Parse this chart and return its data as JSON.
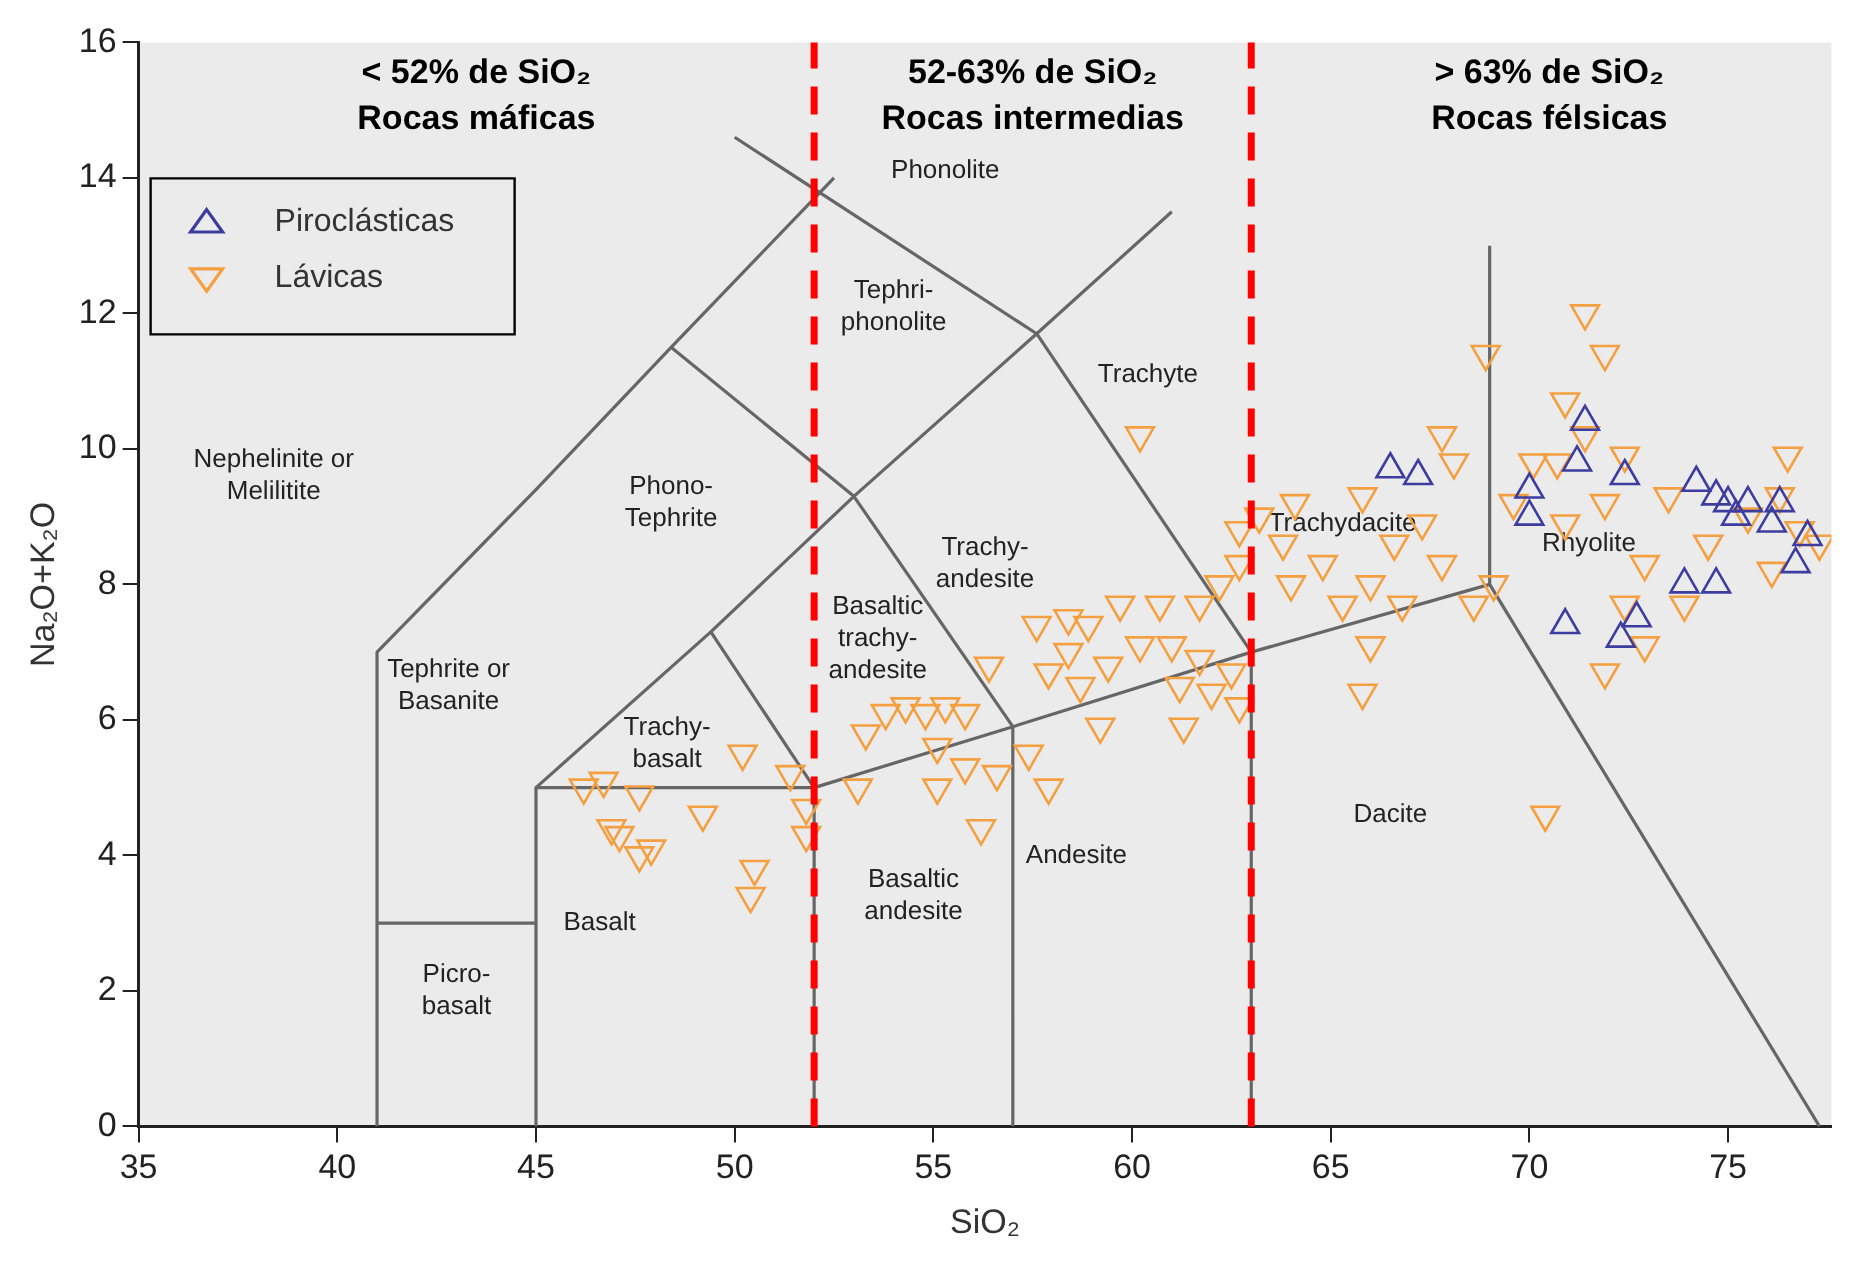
{
  "chart_data": {
    "type": "scatter",
    "xlabel": "SiO₂",
    "ylabel": "Na₂O+K₂O",
    "xlim": [
      35,
      77.6
    ],
    "ylim": [
      0,
      16
    ],
    "xticks": [
      35,
      40,
      45,
      50,
      55,
      60,
      65,
      70,
      75
    ],
    "yticks": [
      0,
      2,
      4,
      6,
      8,
      10,
      12,
      14,
      16
    ],
    "grid": false,
    "legend": "top left",
    "series": [
      {
        "name": "Piroclásticas",
        "color": "#3d3da0",
        "marker": "triangle",
        "x": [
          66.5,
          67.2,
          70.0,
          70.0,
          71.2,
          72.4,
          71.4,
          70.9,
          72.7,
          73.9,
          74.2,
          74.7,
          75.0,
          75.2,
          75.5,
          76.3,
          76.1,
          76.7,
          74.7,
          77.0,
          72.3
        ],
        "values": [
          9.7,
          9.6,
          9.4,
          9.0,
          9.8,
          9.6,
          10.4,
          7.4,
          7.5,
          8.0,
          9.5,
          9.3,
          9.2,
          9.0,
          9.2,
          9.2,
          8.9,
          8.3,
          8.0,
          8.7,
          7.2
        ]
      },
      {
        "name": "Lávicas",
        "color": "#f5a040",
        "marker": "triangle-down",
        "x": [
          46.7,
          47.6,
          47.1,
          47.6,
          47.9,
          49.2,
          50.2,
          50.5,
          50.4,
          51.8,
          51.8,
          51.4,
          46.9,
          46.2,
          53.3,
          53.8,
          54.3,
          54.8,
          55.3,
          55.8,
          55.1,
          53.1,
          55.1,
          56.2,
          55.8,
          56.6,
          57.4,
          57.9,
          57.6,
          58.4,
          58.9,
          59.4,
          58.4,
          57.9,
          58.7,
          60.2,
          61.0,
          60.7,
          59.7,
          61.7,
          62.2,
          62.7,
          62.7,
          63.2,
          62.5,
          62.0,
          62.7,
          61.2,
          60.2,
          56.4,
          59.2,
          61.3,
          63.8,
          64.0,
          61.7,
          64.1,
          64.8,
          65.3,
          65.8,
          66.0,
          66.6,
          66.8,
          65.8,
          67.8,
          68.1,
          68.9,
          67.3,
          67.8,
          68.6,
          69.1,
          66.0,
          70.4,
          70.9,
          71.4,
          71.9,
          70.7,
          71.4,
          72.4,
          70.9,
          71.9,
          73.5,
          72.4,
          71.9,
          72.9,
          73.9,
          74.5,
          75.5,
          76.5,
          76.3,
          76.8,
          77.3,
          76.1,
          72.9,
          69.6,
          70.1
        ],
        "values": [
          5.1,
          4.9,
          4.3,
          4.0,
          4.1,
          4.6,
          5.5,
          3.8,
          3.4,
          4.7,
          4.3,
          5.2,
          4.4,
          5.0,
          5.8,
          6.1,
          6.2,
          6.1,
          6.2,
          6.1,
          5.6,
          5.0,
          5.0,
          4.4,
          5.3,
          5.2,
          5.5,
          5.0,
          7.4,
          7.5,
          7.4,
          6.8,
          7.0,
          6.7,
          6.5,
          7.1,
          7.1,
          7.7,
          7.7,
          7.7,
          8.0,
          8.3,
          8.8,
          9.0,
          6.7,
          6.4,
          6.2,
          6.5,
          10.2,
          6.8,
          5.9,
          5.9,
          8.6,
          8.0,
          6.9,
          9.2,
          8.3,
          7.7,
          9.3,
          8.0,
          8.6,
          7.7,
          6.4,
          10.2,
          9.8,
          11.4,
          8.9,
          8.3,
          7.7,
          8.0,
          7.1,
          4.6,
          10.7,
          12.0,
          11.4,
          9.8,
          10.2,
          9.9,
          8.9,
          9.2,
          9.3,
          7.7,
          6.7,
          7.1,
          7.7,
          8.6,
          9.0,
          9.9,
          9.3,
          8.8,
          8.6,
          8.2,
          8.3,
          9.2,
          9.8
        ]
      },
      {
        "type": "line",
        "color": "#666666",
        "x": [
          41,
          41,
          45,
          48.4,
          52.5,
          null,
          41,
          45,
          null,
          45,
          45,
          49.4,
          53,
          57.6,
          61,
          null,
          45,
          52,
          57,
          63,
          69,
          77.3,
          null,
          69,
          69,
          null,
          52,
          52,
          null,
          57,
          57,
          null,
          63,
          63,
          null,
          49.4,
          52,
          null,
          53,
          57,
          null,
          57.6,
          63,
          null,
          48.4,
          53,
          null,
          50,
          57.6
        ],
        "values": [
          0,
          7,
          9.4,
          11.5,
          14,
          null,
          3,
          3,
          null,
          0,
          5,
          7.3,
          9.3,
          11.7,
          13.5,
          null,
          5,
          5,
          5.9,
          7,
          8,
          0,
          null,
          8,
          13,
          null,
          0,
          5,
          null,
          0,
          5.9,
          null,
          0,
          7,
          null,
          7.3,
          5,
          null,
          9.3,
          5.9,
          null,
          11.7,
          7,
          null,
          11.5,
          9.3,
          null,
          14.6,
          11.7
        ]
      }
    ],
    "ref_lines": [
      {
        "axis": "x",
        "value": 52,
        "color": "#ff0000",
        "line_style": "dashed"
      },
      {
        "axis": "x",
        "value": 63,
        "color": "#ff0000",
        "line_style": "dashed"
      }
    ],
    "annotations": [
      "< 52% de SiO₂\nRocas máficas",
      "52-63% de SiO₂\nRocas intermedias",
      "> 63% de SiO₂\nRocas félsicas",
      "Phonolite",
      "Tephri-\nphonolite",
      "Phono-\nTephrite",
      "Trachyte",
      "Trachy-\nandesite",
      "Trachydacite",
      "Basaltic\ntrachy-\nandesite",
      "Tephrite or\nBasanite",
      "Trachy-\nbasalt",
      "Basalt",
      "Basaltic\nandesite",
      "Andesite",
      "Dacite",
      "Rhyolite",
      "Picro-\nbasalt",
      "Nephelinite or\nMelilitite"
    ]
  }
}
